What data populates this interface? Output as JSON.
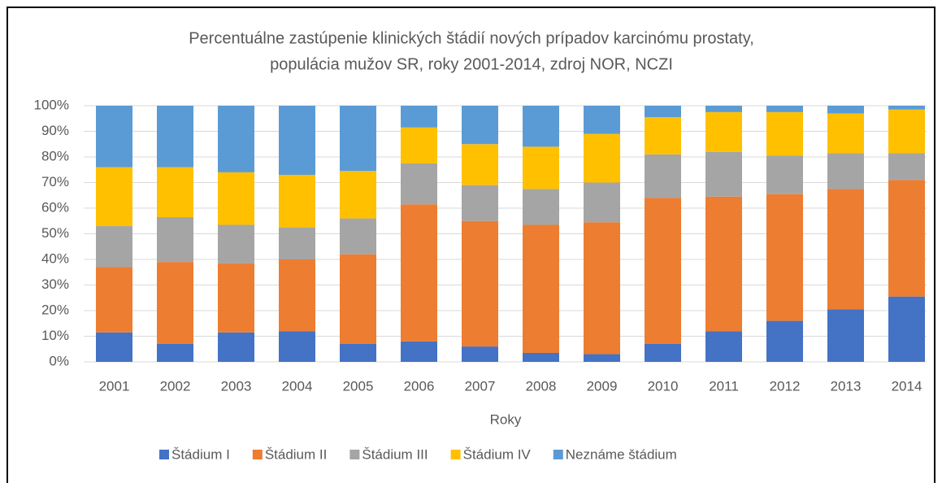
{
  "chart_data": {
    "type": "stacked_bar",
    "title": [
      "Percentuálne zastúpenie klinických štádií nových prípadov karcinómu prostaty,",
      "populácia mužov SR, roky 2001-2014, zdroj NOR, NCZI"
    ],
    "x_label": "Roky",
    "categories": [
      "2001",
      "2002",
      "2003",
      "2004",
      "2005",
      "2006",
      "2007",
      "2008",
      "2009",
      "2010",
      "2011",
      "2012",
      "2013",
      "2014"
    ],
    "series": [
      {
        "name": "Štádium I",
        "color": "#4472c4",
        "values": [
          11.5,
          7,
          11.5,
          12,
          7,
          8,
          6,
          3.5,
          3,
          7,
          12,
          16,
          20.5,
          25.5
        ]
      },
      {
        "name": "Štádium II",
        "color": "#ed7d31",
        "values": [
          25.5,
          32,
          27,
          28,
          35,
          53.5,
          49,
          50,
          51.5,
          57,
          52.5,
          49.5,
          47,
          45.5
        ]
      },
      {
        "name": "Štádium III",
        "color": "#a5a5a5",
        "values": [
          16,
          17.5,
          15,
          12.5,
          14,
          16,
          14,
          14,
          15.5,
          17,
          17.5,
          15,
          14,
          10.5
        ]
      },
      {
        "name": "Štádium IV",
        "color": "#ffc000",
        "values": [
          23,
          19.5,
          20.5,
          20.5,
          18.5,
          14,
          16,
          16.5,
          19,
          14.5,
          15.5,
          17,
          15.5,
          17
        ]
      },
      {
        "name": "Neznáme štádium",
        "color": "#5b9bd5",
        "values": [
          24,
          24,
          26,
          27,
          25.5,
          8.5,
          15,
          16,
          11,
          4.5,
          2.5,
          2.5,
          3,
          1.5
        ]
      }
    ],
    "ylim": [
      0,
      100
    ],
    "yticks": [
      {
        "value": 0,
        "label": "0%"
      },
      {
        "value": 10,
        "label": "10%"
      },
      {
        "value": 20,
        "label": "20%"
      },
      {
        "value": 30,
        "label": "30%"
      },
      {
        "value": 40,
        "label": "40%"
      },
      {
        "value": 50,
        "label": "50%"
      },
      {
        "value": 60,
        "label": "60%"
      },
      {
        "value": 70,
        "label": "70%"
      },
      {
        "value": 80,
        "label": "80%"
      },
      {
        "value": 90,
        "label": "90%"
      },
      {
        "value": 100,
        "label": "100%"
      }
    ],
    "grid": true,
    "legend": "bottom"
  }
}
